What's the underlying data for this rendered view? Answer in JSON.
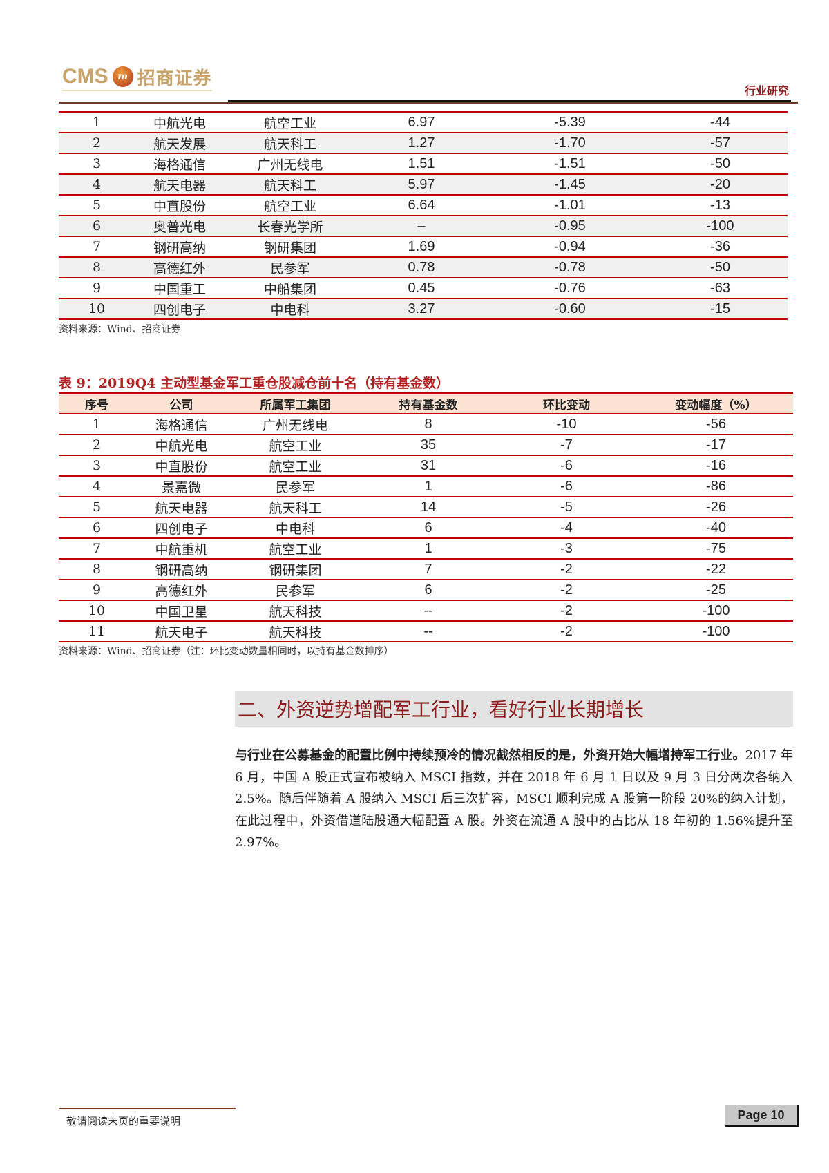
{
  "header": {
    "logo_text": "CMS 招商证券",
    "logo_latin": "CMS",
    "logo_cn": "招商证券",
    "section_label": "行业研究"
  },
  "table1": {
    "rows": [
      [
        "1",
        "中航光电",
        "航空工业",
        "6.97",
        "-5.39",
        "-44"
      ],
      [
        "2",
        "航天发展",
        "航天科工",
        "1.27",
        "-1.70",
        "-57"
      ],
      [
        "3",
        "海格通信",
        "广州无线电",
        "1.51",
        "-1.51",
        "-50"
      ],
      [
        "4",
        "航天电器",
        "航天科工",
        "5.97",
        "-1.45",
        "-20"
      ],
      [
        "5",
        "中直股份",
        "航空工业",
        "6.64",
        "-1.01",
        "-13"
      ],
      [
        "6",
        "奥普光电",
        "长春光学所",
        "–",
        "-0.95",
        "-100"
      ],
      [
        "7",
        "钢研高纳",
        "钢研集团",
        "1.69",
        "-0.94",
        "-36"
      ],
      [
        "8",
        "高德红外",
        "民参军",
        "0.78",
        "-0.78",
        "-50"
      ],
      [
        "9",
        "中国重工",
        "中船集团",
        "0.45",
        "-0.76",
        "-63"
      ],
      [
        "10",
        "四创电子",
        "中电科",
        "3.27",
        "-0.60",
        "-15"
      ]
    ],
    "source": "资料来源：Wind、招商证券"
  },
  "table2": {
    "title": "表 9：2019Q4 主动型基金军工重仓股减仓前十名（持有基金数）",
    "headers": [
      "序号",
      "公司",
      "所属军工集团",
      "持有基金数",
      "环比变动",
      "变动幅度（%）"
    ],
    "rows": [
      [
        "1",
        "海格通信",
        "广州无线电",
        "8",
        "-10",
        "-56"
      ],
      [
        "2",
        "中航光电",
        "航空工业",
        "35",
        "-7",
        "-17"
      ],
      [
        "3",
        "中直股份",
        "航空工业",
        "31",
        "-6",
        "-16"
      ],
      [
        "4",
        "景嘉微",
        "民参军",
        "1",
        "-6",
        "-86"
      ],
      [
        "5",
        "航天电器",
        "航天科工",
        "14",
        "-5",
        "-26"
      ],
      [
        "6",
        "四创电子",
        "中电科",
        "6",
        "-4",
        "-40"
      ],
      [
        "7",
        "中航重机",
        "航空工业",
        "1",
        "-3",
        "-75"
      ],
      [
        "8",
        "钢研高纳",
        "钢研集团",
        "7",
        "-2",
        "-22"
      ],
      [
        "9",
        "高德红外",
        "民参军",
        "6",
        "-2",
        "-25"
      ],
      [
        "10",
        "中国卫星",
        "航天科技",
        "--",
        "-2",
        "-100"
      ],
      [
        "11",
        "航天电子",
        "航天科技",
        "--",
        "-2",
        "-100"
      ]
    ],
    "source": "资料来源：Wind、招商证券（注：环比变动数量相同时，以持有基金数排序）"
  },
  "section": {
    "heading": "二、外资逆势增配军工行业，看好行业长期增长",
    "para_bold": "与行业在公募基金的配置比例中持续预冷的情况截然相反的是，外资开始大幅增持军工行业。",
    "para_text": "2017 年 6 月，中国 A 股正式宣布被纳入 MSCI 指数，并在 2018 年 6 月 1 日以及 9 月 3 日分两次各纳入 2.5%。随后伴随着 A 股纳入 MSCI 后三次扩容，MSCI 顺利完成 A 股第一阶段 20%的纳入计划，在此过程中，外资借道陆股通大幅配置 A 股。外资在流通 A 股中的占比从 18 年初的 1.56%提升至 2.97%。"
  },
  "footer": {
    "disclaimer": "敬请阅读末页的重要说明",
    "page": "Page 10"
  },
  "colors": {
    "accent_red": "#c00000",
    "heading_red": "#8b1a1a",
    "header_fill": "#fbe3d3",
    "stripe": "#f0f0f0"
  }
}
